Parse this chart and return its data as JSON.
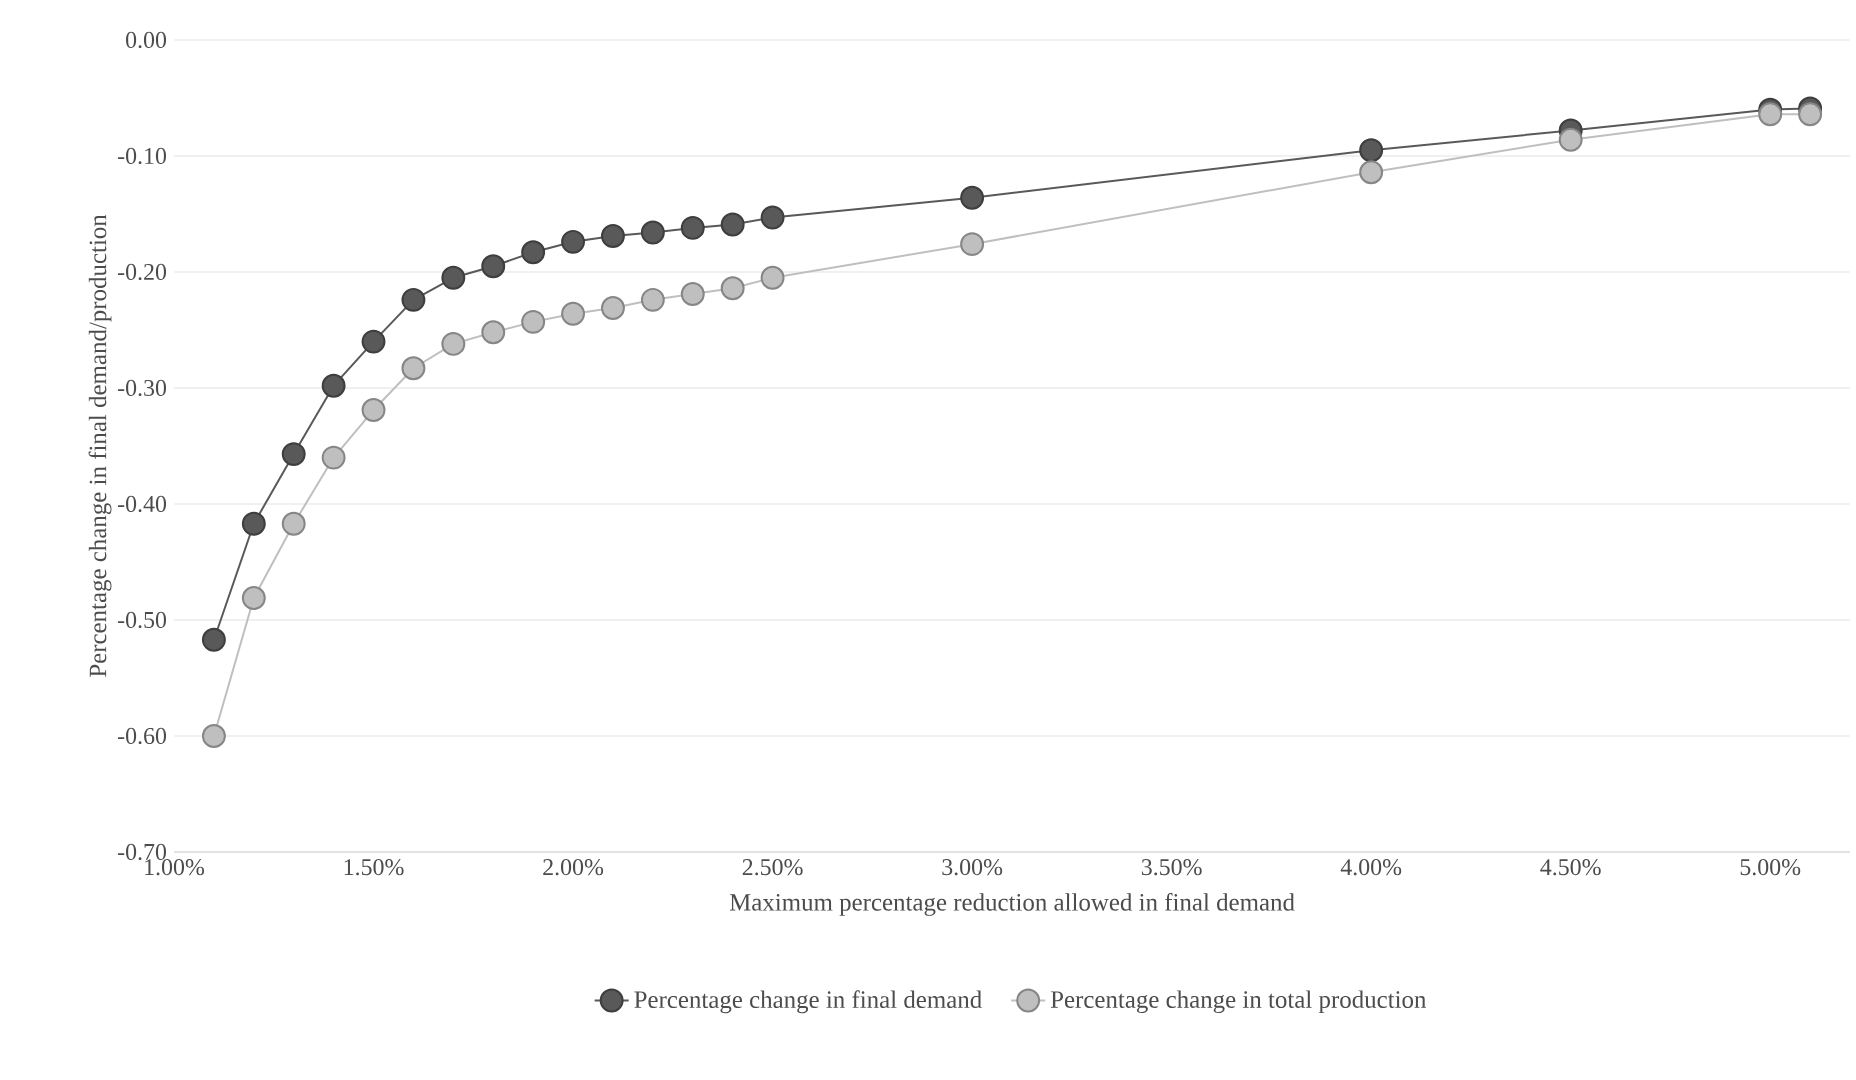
{
  "chart_data": {
    "type": "line",
    "xlabel": "Maximum percentage reduction allowed in final demand",
    "ylabel": "Percentage change in final demand/production",
    "x": [
      1.1,
      1.2,
      1.3,
      1.4,
      1.5,
      1.6,
      1.7,
      1.8,
      1.9,
      2.0,
      2.1,
      2.2,
      2.3,
      2.4,
      2.5,
      3.0,
      4.0,
      4.5,
      5.0,
      5.1
    ],
    "series": [
      {
        "name": "Percentage change in final demand",
        "color": "#595959",
        "values": [
          -0.517,
          -0.417,
          -0.357,
          -0.298,
          -0.26,
          -0.224,
          -0.205,
          -0.195,
          -0.183,
          -0.174,
          -0.169,
          -0.166,
          -0.162,
          -0.159,
          -0.153,
          -0.136,
          -0.095,
          -0.078,
          -0.06,
          -0.059
        ]
      },
      {
        "name": "Percentage change in total production",
        "color": "#bfbfbf",
        "values": [
          -0.6,
          -0.481,
          -0.417,
          -0.36,
          -0.319,
          -0.283,
          -0.262,
          -0.252,
          -0.243,
          -0.236,
          -0.231,
          -0.224,
          -0.219,
          -0.214,
          -0.205,
          -0.176,
          -0.114,
          -0.086,
          -0.064,
          -0.064
        ]
      }
    ],
    "xlim": [
      1.0,
      5.2
    ],
    "xticks": [
      {
        "value": 1.0,
        "label": "1.00%"
      },
      {
        "value": 1.5,
        "label": "1.50%"
      },
      {
        "value": 2.0,
        "label": "2.00%"
      },
      {
        "value": 2.5,
        "label": "2.50%"
      },
      {
        "value": 3.0,
        "label": "3.00%"
      },
      {
        "value": 3.5,
        "label": "3.50%"
      },
      {
        "value": 4.0,
        "label": "4.00%"
      },
      {
        "value": 4.5,
        "label": "4.50%"
      },
      {
        "value": 5.0,
        "label": "5.00%"
      }
    ],
    "ylim": [
      -0.7,
      0.0
    ],
    "yticks": [
      {
        "value": 0.0,
        "label": "0.00"
      },
      {
        "value": -0.1,
        "label": "-0.10"
      },
      {
        "value": -0.2,
        "label": "-0.20"
      },
      {
        "value": -0.3,
        "label": "-0.30"
      },
      {
        "value": -0.4,
        "label": "-0.40"
      },
      {
        "value": -0.5,
        "label": "-0.50"
      },
      {
        "value": -0.6,
        "label": "-0.60"
      },
      {
        "value": -0.7,
        "label": "-0.70"
      }
    ],
    "grid": "y",
    "legend": "bottom",
    "marker": "circle",
    "line_style": "solid"
  }
}
